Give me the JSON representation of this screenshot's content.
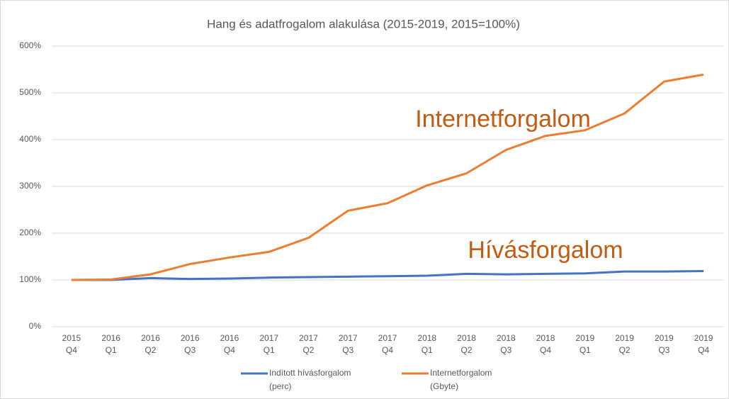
{
  "chart_data": {
    "type": "line",
    "title": "Hang és adatfrogalom alakulása (2015-2019, 2015=100%)",
    "categories": [
      [
        "2015",
        "Q4"
      ],
      [
        "2016",
        "Q1"
      ],
      [
        "2016",
        "Q2"
      ],
      [
        "2016",
        "Q3"
      ],
      [
        "2016",
        "Q4"
      ],
      [
        "2017",
        "Q1"
      ],
      [
        "2017",
        "Q2"
      ],
      [
        "2017",
        "Q3"
      ],
      [
        "2017",
        "Q4"
      ],
      [
        "2018",
        "Q1"
      ],
      [
        "2018",
        "Q2"
      ],
      [
        "2018",
        "Q3"
      ],
      [
        "2018",
        "Q4"
      ],
      [
        "2019",
        "Q1"
      ],
      [
        "2019",
        "Q2"
      ],
      [
        "2019",
        "Q3"
      ],
      [
        "2019",
        "Q4"
      ]
    ],
    "series": [
      {
        "name": "Indított hívásforgalom (perc)",
        "color": "#4472c4",
        "values": [
          100,
          100,
          104,
          102,
          103,
          105,
          106,
          107,
          108,
          109,
          113,
          112,
          113,
          114,
          118,
          118,
          119
        ]
      },
      {
        "name": "Internetforgalom (Gbyte)",
        "color": "#ed7d31",
        "values": [
          100,
          101,
          112,
          134,
          148,
          160,
          190,
          248,
          264,
          302,
          328,
          378,
          408,
          420,
          456,
          524,
          539
        ]
      }
    ],
    "annotations": [
      "Internetforgalom",
      "Hívásforgalom"
    ],
    "ylim": [
      0,
      600
    ],
    "yticks": [
      {
        "value": 0,
        "label": "0%"
      },
      {
        "value": 100,
        "label": "100%"
      },
      {
        "value": 200,
        "label": "200%"
      },
      {
        "value": 300,
        "label": "300%"
      },
      {
        "value": 400,
        "label": "400%"
      },
      {
        "value": 500,
        "label": "500%"
      },
      {
        "value": 600,
        "label": "600%"
      }
    ],
    "grid": true
  }
}
